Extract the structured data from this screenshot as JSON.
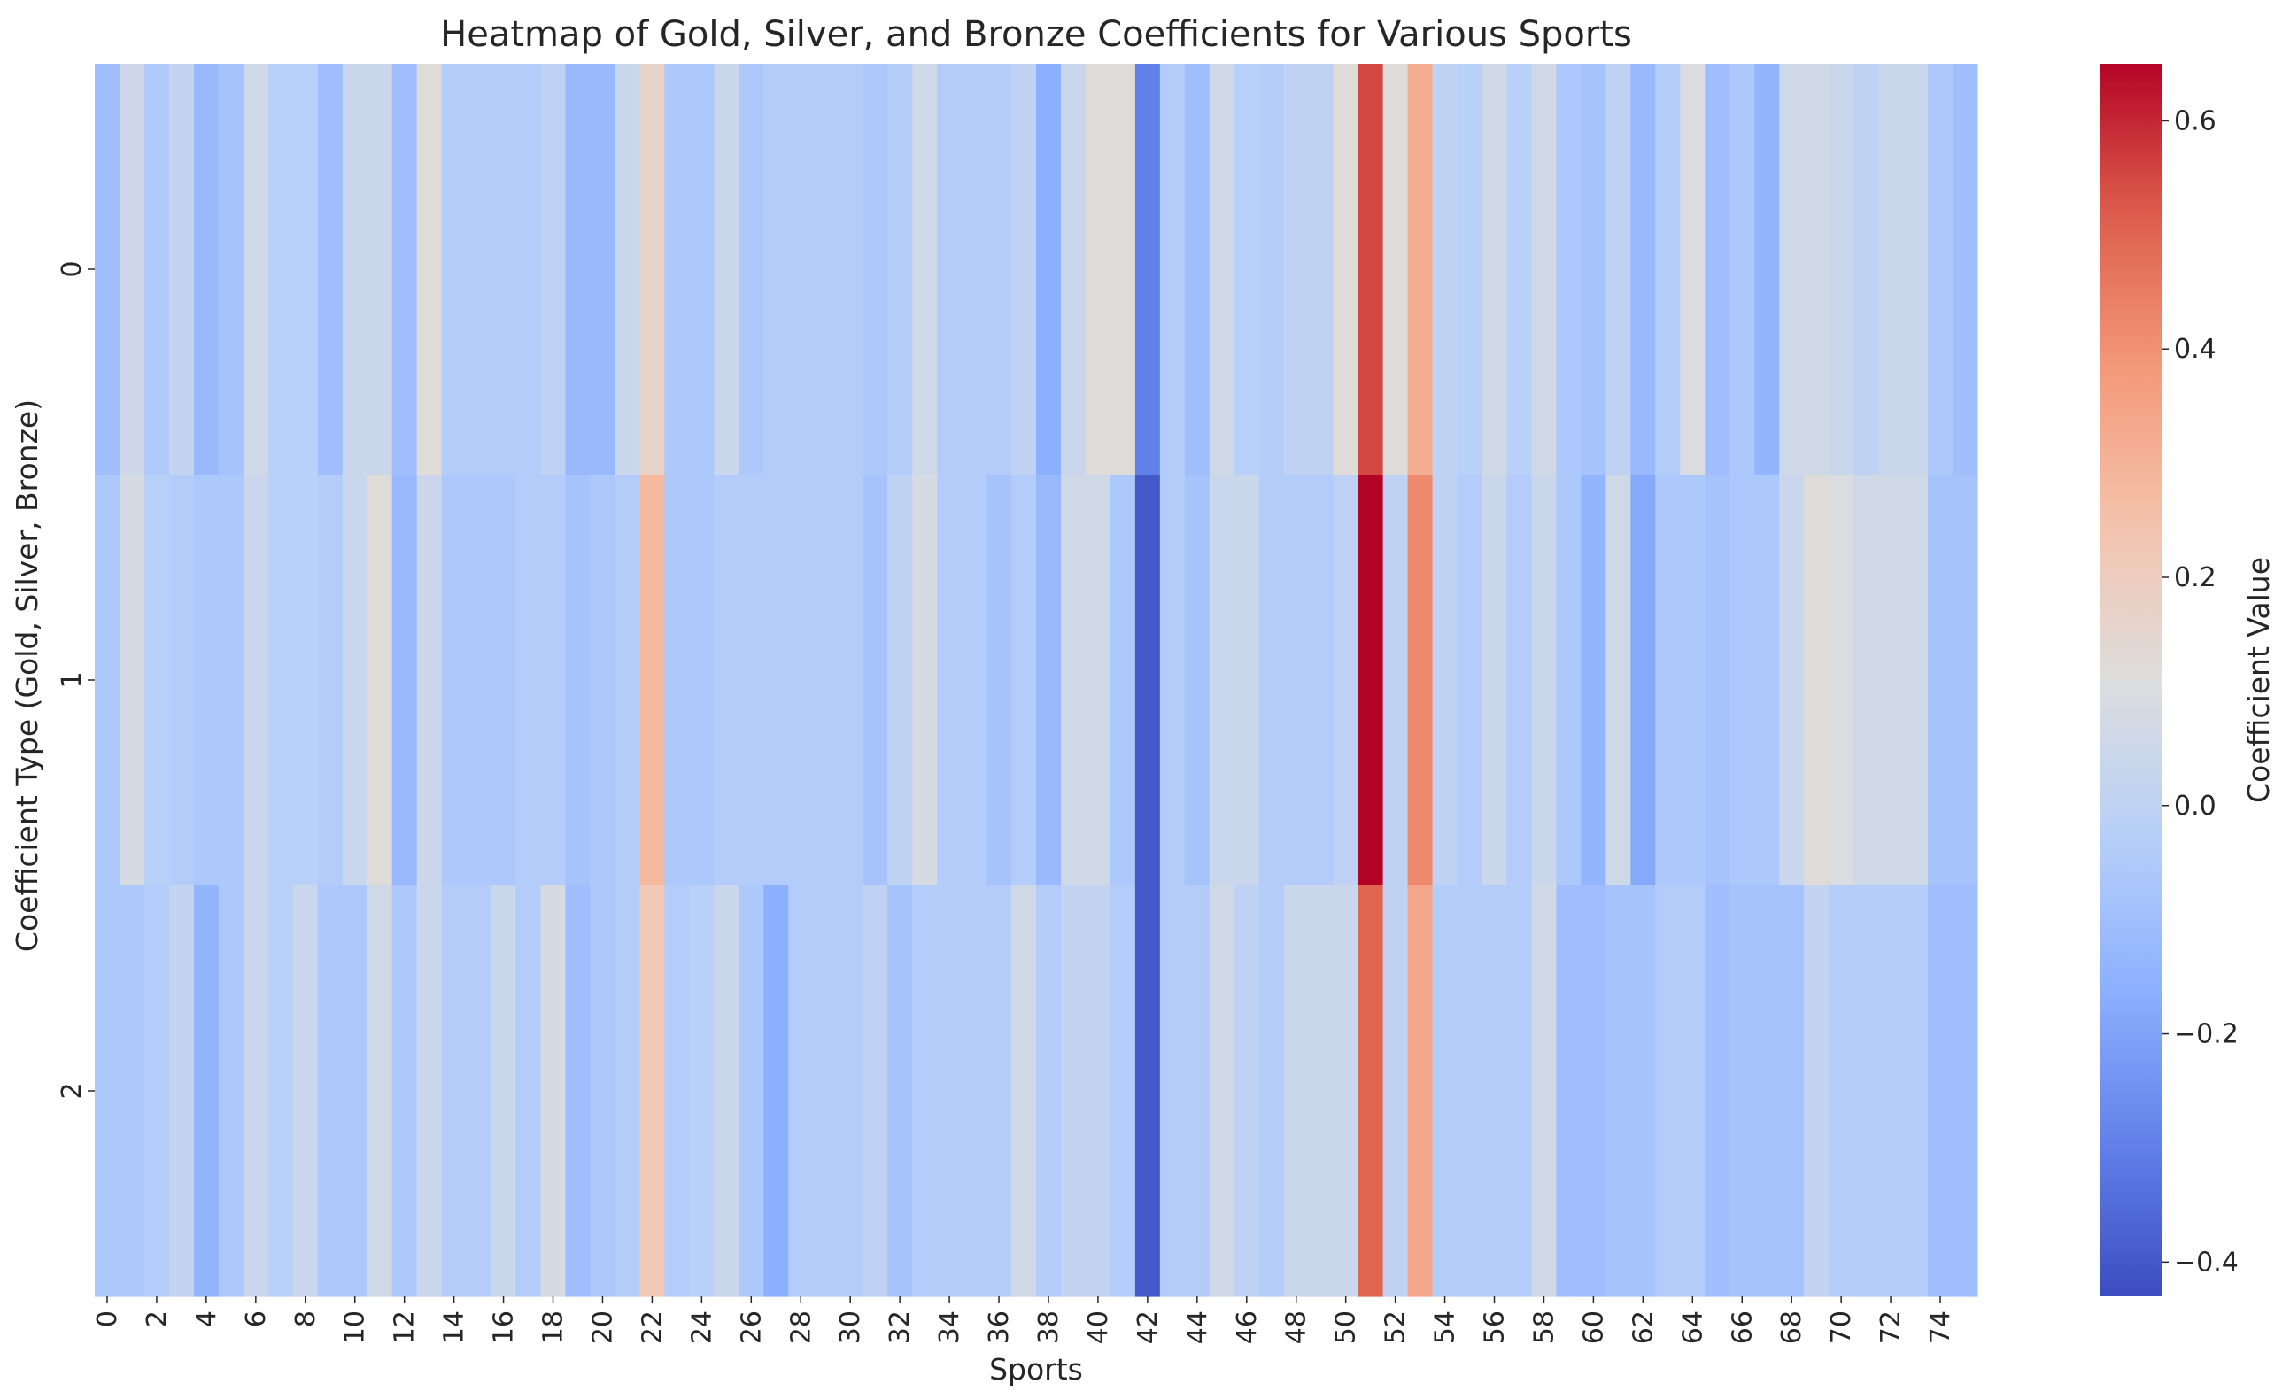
{
  "chart_data": {
    "type": "heatmap",
    "title": "Heatmap of Gold, Silver, and Bronze Coefficients for Various Sports",
    "xlabel": "Sports",
    "ylabel": "Coefficient Type (Gold, Silver, Bronze)",
    "colorbar_label": "Coefficient Value",
    "colormap": "coolwarm",
    "vmin": -0.43,
    "vmax": 0.65,
    "rows": [
      "0",
      "1",
      "2"
    ],
    "columns": [
      "0",
      "1",
      "2",
      "3",
      "4",
      "5",
      "6",
      "7",
      "8",
      "9",
      "10",
      "11",
      "12",
      "13",
      "14",
      "15",
      "16",
      "17",
      "18",
      "19",
      "20",
      "21",
      "22",
      "23",
      "24",
      "25",
      "26",
      "27",
      "28",
      "29",
      "30",
      "31",
      "32",
      "33",
      "34",
      "35",
      "36",
      "37",
      "38",
      "39",
      "40",
      "41",
      "42",
      "43",
      "44",
      "45",
      "46",
      "47",
      "48",
      "49",
      "50",
      "51",
      "52",
      "53",
      "54",
      "55",
      "56",
      "57",
      "58",
      "59",
      "60",
      "61",
      "62",
      "63",
      "64",
      "65",
      "66",
      "67",
      "68",
      "69",
      "70",
      "71",
      "72",
      "73",
      "74",
      "75"
    ],
    "x_tick_labels": [
      "0",
      "2",
      "4",
      "6",
      "8",
      "10",
      "12",
      "14",
      "16",
      "18",
      "20",
      "22",
      "24",
      "26",
      "28",
      "30",
      "32",
      "34",
      "36",
      "38",
      "40",
      "42",
      "44",
      "46",
      "48",
      "50",
      "52",
      "54",
      "56",
      "58",
      "60",
      "62",
      "64",
      "66",
      "68",
      "70",
      "72",
      "74"
    ],
    "x_tick_columns": [
      0,
      2,
      4,
      6,
      8,
      10,
      12,
      14,
      16,
      18,
      20,
      22,
      24,
      26,
      28,
      30,
      32,
      34,
      36,
      38,
      40,
      42,
      44,
      46,
      48,
      50,
      52,
      54,
      56,
      58,
      60,
      62,
      64,
      66,
      68,
      70,
      72,
      74
    ],
    "y_tick_labels": [
      "0",
      "1",
      "2"
    ],
    "colorbar_ticks": [
      -0.4,
      -0.2,
      0.0,
      0.2,
      0.4,
      0.6
    ],
    "colorbar_tick_labels": [
      "−0.4",
      "−0.2",
      "0.0",
      "0.2",
      "0.4",
      "0.6"
    ],
    "values": [
      [
        -0.1,
        0.05,
        -0.05,
        0.02,
        -0.12,
        -0.08,
        0.06,
        -0.02,
        -0.02,
        -0.1,
        0.04,
        0.04,
        -0.1,
        0.12,
        -0.04,
        -0.04,
        -0.04,
        -0.04,
        0.0,
        -0.12,
        -0.12,
        0.04,
        0.16,
        -0.06,
        -0.06,
        0.04,
        -0.06,
        -0.04,
        -0.04,
        -0.04,
        -0.04,
        -0.06,
        -0.04,
        0.06,
        -0.04,
        -0.04,
        -0.04,
        0.0,
        -0.16,
        0.04,
        0.12,
        0.12,
        -0.3,
        -0.04,
        -0.1,
        0.06,
        -0.02,
        -0.04,
        0.0,
        0.0,
        0.12,
        0.55,
        0.12,
        0.32,
        0.0,
        -0.02,
        0.06,
        -0.02,
        0.06,
        -0.06,
        -0.08,
        0.0,
        -0.12,
        -0.04,
        0.1,
        -0.1,
        -0.06,
        -0.14,
        0.06,
        0.06,
        0.04,
        0.0,
        0.04,
        0.04,
        -0.06,
        -0.1
      ],
      [
        -0.06,
        0.08,
        -0.02,
        -0.04,
        -0.06,
        -0.06,
        0.04,
        -0.02,
        -0.02,
        -0.04,
        0.04,
        0.12,
        -0.12,
        0.04,
        -0.06,
        -0.06,
        -0.06,
        -0.04,
        -0.04,
        -0.08,
        -0.06,
        -0.04,
        0.28,
        -0.06,
        -0.06,
        -0.04,
        -0.04,
        -0.04,
        -0.04,
        -0.04,
        -0.04,
        -0.08,
        0.0,
        0.08,
        -0.04,
        -0.04,
        -0.08,
        -0.04,
        -0.12,
        0.06,
        0.06,
        -0.06,
        -0.4,
        -0.04,
        -0.08,
        0.04,
        0.04,
        -0.04,
        -0.04,
        -0.04,
        0.0,
        0.65,
        0.0,
        0.42,
        0.0,
        -0.04,
        0.04,
        -0.04,
        0.04,
        -0.06,
        -0.14,
        0.06,
        -0.18,
        -0.06,
        -0.06,
        -0.08,
        -0.06,
        -0.06,
        0.04,
        0.12,
        0.1,
        0.06,
        0.06,
        0.06,
        -0.08,
        -0.08
      ],
      [
        -0.06,
        -0.06,
        -0.04,
        0.02,
        -0.14,
        -0.06,
        0.04,
        -0.02,
        0.04,
        -0.06,
        -0.06,
        0.06,
        -0.06,
        0.04,
        -0.04,
        -0.04,
        0.04,
        -0.04,
        0.08,
        -0.1,
        -0.06,
        -0.04,
        0.22,
        -0.04,
        -0.02,
        0.04,
        -0.06,
        -0.16,
        -0.04,
        -0.04,
        -0.04,
        0.0,
        -0.08,
        -0.04,
        -0.04,
        -0.04,
        -0.04,
        0.06,
        -0.04,
        0.02,
        0.02,
        -0.04,
        -0.4,
        -0.04,
        -0.04,
        0.06,
        0.0,
        -0.04,
        0.04,
        0.04,
        0.04,
        0.5,
        0.0,
        0.34,
        -0.04,
        -0.04,
        -0.04,
        -0.04,
        0.06,
        -0.1,
        -0.1,
        -0.08,
        -0.08,
        -0.04,
        -0.04,
        -0.1,
        -0.08,
        -0.08,
        -0.08,
        0.02,
        -0.04,
        -0.04,
        -0.04,
        -0.04,
        -0.1,
        -0.1
      ]
    ]
  }
}
